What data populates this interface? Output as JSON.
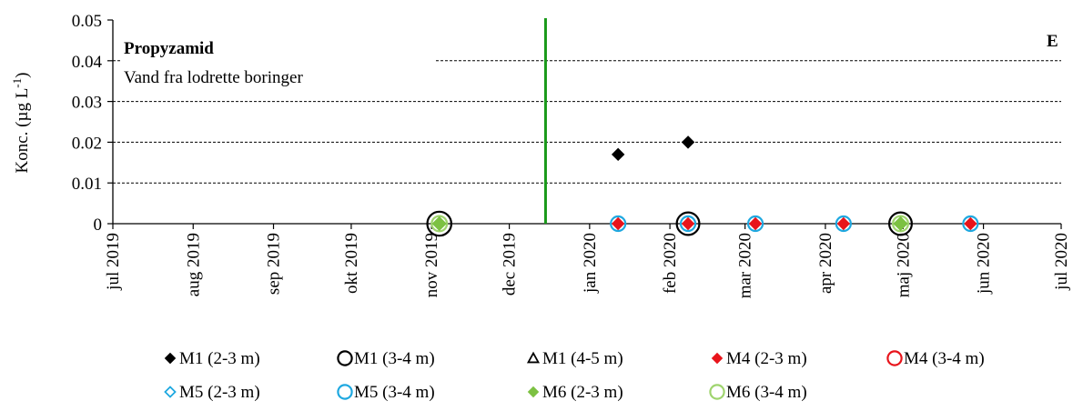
{
  "chart_data": {
    "type": "scatter",
    "title": "Propyzamid",
    "subtitle": "Vand fra lodrette boringer",
    "panel_label": "E",
    "ylabel": "Konc. (µg L",
    "ylabel_sup": "-1",
    "ylabel_close": ")",
    "ylim": [
      0,
      0.05
    ],
    "yticks": [
      0,
      0.01,
      0.02,
      0.03,
      0.04,
      0.05
    ],
    "ytick_labels": [
      "0",
      "0.01",
      "0.02",
      "0.03",
      "0.04",
      "0.05"
    ],
    "xlim": [
      "2019-07-01",
      "2020-07-01"
    ],
    "xticks": [
      "2019-07-01",
      "2019-08-01",
      "2019-09-01",
      "2019-10-01",
      "2019-11-01",
      "2019-12-01",
      "2020-01-01",
      "2020-02-01",
      "2020-03-01",
      "2020-04-01",
      "2020-05-01",
      "2020-06-01",
      "2020-07-01"
    ],
    "xtick_labels": [
      "jul 2019",
      "aug 2019",
      "sep 2019",
      "okt 2019",
      "nov 2019",
      "dec 2019",
      "jan 2020",
      "feb 2020",
      "mar 2020",
      "apr 2020",
      "maj 2020",
      "jun 2020",
      "jul 2020"
    ],
    "grid": "horizontal dashed",
    "vertical_line": {
      "x": "2019-12-15",
      "color": "#1a9a1a"
    },
    "series": [
      {
        "name": "M1 (2-3 m)",
        "marker": "diamond-filled",
        "color": "#000000",
        "points": [
          {
            "x": "2020-01-12",
            "y": 0.017
          },
          {
            "x": "2020-02-08",
            "y": 0.02
          }
        ]
      },
      {
        "name": "M1 (3-4 m)",
        "marker": "circle-open",
        "color": "#000000",
        "points": [
          {
            "x": "2019-11-04",
            "y": 0
          },
          {
            "x": "2020-02-08",
            "y": 0
          },
          {
            "x": "2020-04-30",
            "y": 0
          }
        ]
      },
      {
        "name": "M1 (4-5 m)",
        "marker": "triangle-open",
        "color": "#000000",
        "points": []
      },
      {
        "name": "M4 (2-3 m)",
        "marker": "diamond-filled",
        "color": "#e8141b",
        "points": [
          {
            "x": "2020-01-12",
            "y": 0
          },
          {
            "x": "2020-02-08",
            "y": 0
          },
          {
            "x": "2020-03-05",
            "y": 0
          },
          {
            "x": "2020-04-08",
            "y": 0
          },
          {
            "x": "2020-05-27",
            "y": 0
          }
        ]
      },
      {
        "name": "M4 (3-4 m)",
        "marker": "circle-open",
        "color": "#e8141b",
        "points": []
      },
      {
        "name": "M5 (2-3 m)",
        "marker": "diamond-open",
        "color": "#1ea8e0",
        "points": []
      },
      {
        "name": "M5 (3-4 m)",
        "marker": "circle-open",
        "color": "#1ea8e0",
        "points": [
          {
            "x": "2020-01-12",
            "y": 0
          },
          {
            "x": "2020-02-08",
            "y": 0
          },
          {
            "x": "2020-03-05",
            "y": 0
          },
          {
            "x": "2020-04-08",
            "y": 0
          },
          {
            "x": "2020-05-27",
            "y": 0
          }
        ]
      },
      {
        "name": "M6 (2-3 m)",
        "marker": "diamond-filled",
        "color": "#7cc142",
        "points": [
          {
            "x": "2019-11-04",
            "y": 0
          },
          {
            "x": "2020-04-30",
            "y": 0
          }
        ]
      },
      {
        "name": "M6 (3-4 m)",
        "marker": "circle-open",
        "color": "#9fd46e",
        "points": [
          {
            "x": "2019-11-04",
            "y": 0
          },
          {
            "x": "2020-04-30",
            "y": 0
          }
        ]
      }
    ],
    "legend": {
      "position": "bottom"
    }
  }
}
